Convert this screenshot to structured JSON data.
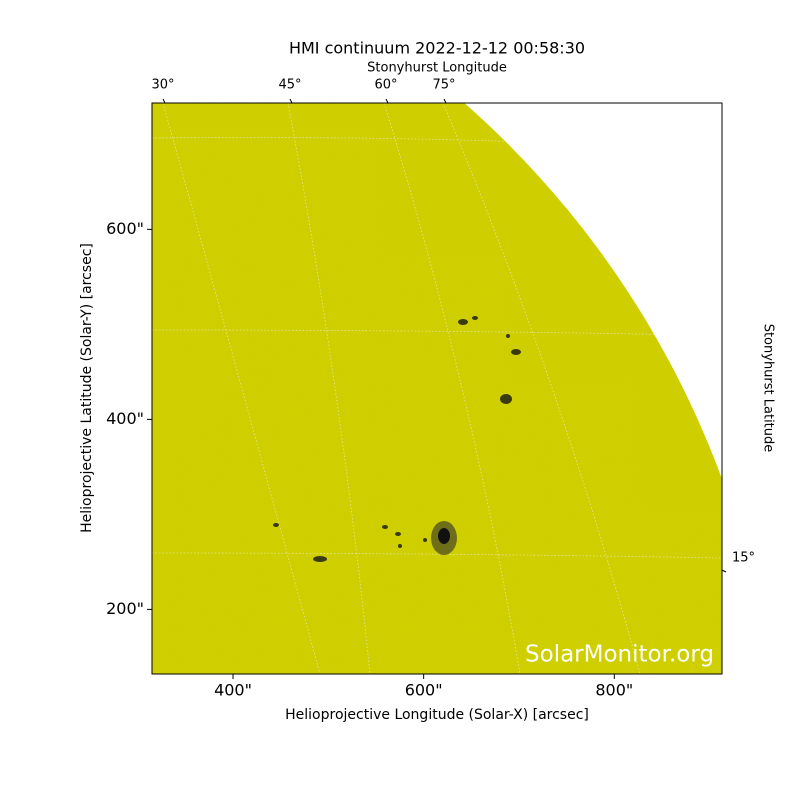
{
  "chart_data": {
    "type": "image",
    "title": "HMI continuum 2022-12-12 00:58:30",
    "top_axis_label": "Stonyhurst Longitude",
    "right_axis_label": "Stonyhurst Latitude",
    "x_label": "Helioprojective Longitude (Solar-X) [arcsec]",
    "y_label": "Helioprojective Latitude (Solar-Y) [arcsec]",
    "top_tick_labels": [
      "30°",
      "45°",
      "60°",
      "75°"
    ],
    "right_tick_labels": [
      "15°"
    ],
    "watermark": "SolarMonitor.org",
    "color": "#cccc00",
    "xlim": [
      315,
      913
    ],
    "ylim": [
      132,
      733
    ],
    "xticks": [
      {
        "value": 400,
        "label": "400\""
      },
      {
        "value": 600,
        "label": "600\""
      },
      {
        "value": 800,
        "label": "800\""
      }
    ],
    "yticks": [
      {
        "value": 200,
        "label": "200\""
      },
      {
        "value": 400,
        "label": "400\""
      },
      {
        "value": 600,
        "label": "600\""
      }
    ]
  }
}
